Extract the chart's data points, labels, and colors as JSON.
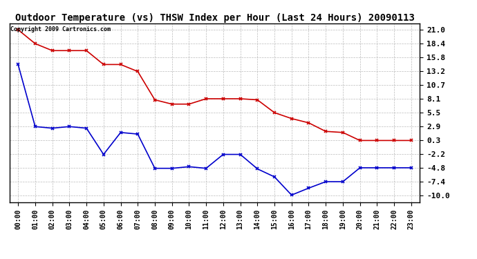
{
  "title": "Outdoor Temperature (vs) THSW Index per Hour (Last 24 Hours) 20090113",
  "copyright": "Copyright 2009 Cartronics.com",
  "x_labels": [
    "00:00",
    "01:00",
    "02:00",
    "03:00",
    "04:00",
    "05:00",
    "06:00",
    "07:00",
    "08:00",
    "09:00",
    "10:00",
    "11:00",
    "12:00",
    "13:00",
    "14:00",
    "15:00",
    "16:00",
    "17:00",
    "18:00",
    "19:00",
    "20:00",
    "21:00",
    "22:00",
    "23:00"
  ],
  "red_data": [
    21.0,
    18.4,
    17.1,
    17.1,
    17.1,
    14.5,
    14.5,
    13.2,
    7.9,
    7.1,
    7.1,
    8.1,
    8.1,
    8.1,
    7.9,
    5.5,
    4.4,
    3.6,
    2.0,
    1.8,
    0.3,
    0.3,
    0.3,
    0.3
  ],
  "blue_data": [
    14.5,
    2.9,
    2.6,
    2.9,
    2.6,
    -2.3,
    1.8,
    1.5,
    -4.9,
    -4.9,
    -4.6,
    -4.9,
    -2.3,
    -2.3,
    -5.0,
    -6.5,
    -9.9,
    -8.6,
    -7.4,
    -7.4,
    -4.8,
    -4.8,
    -4.8,
    -4.8
  ],
  "y_ticks": [
    -10.0,
    -7.4,
    -4.8,
    -2.2,
    0.3,
    2.9,
    5.5,
    8.1,
    10.7,
    13.2,
    15.8,
    18.4,
    21.0
  ],
  "ylim": [
    -11.2,
    22.2
  ],
  "red_color": "#cc0000",
  "blue_color": "#0000cc",
  "background_color": "#ffffff",
  "grid_color": "#aaaaaa",
  "title_fontsize": 10,
  "copyright_fontsize": 6,
  "tick_fontsize": 8,
  "xtick_fontsize": 7
}
